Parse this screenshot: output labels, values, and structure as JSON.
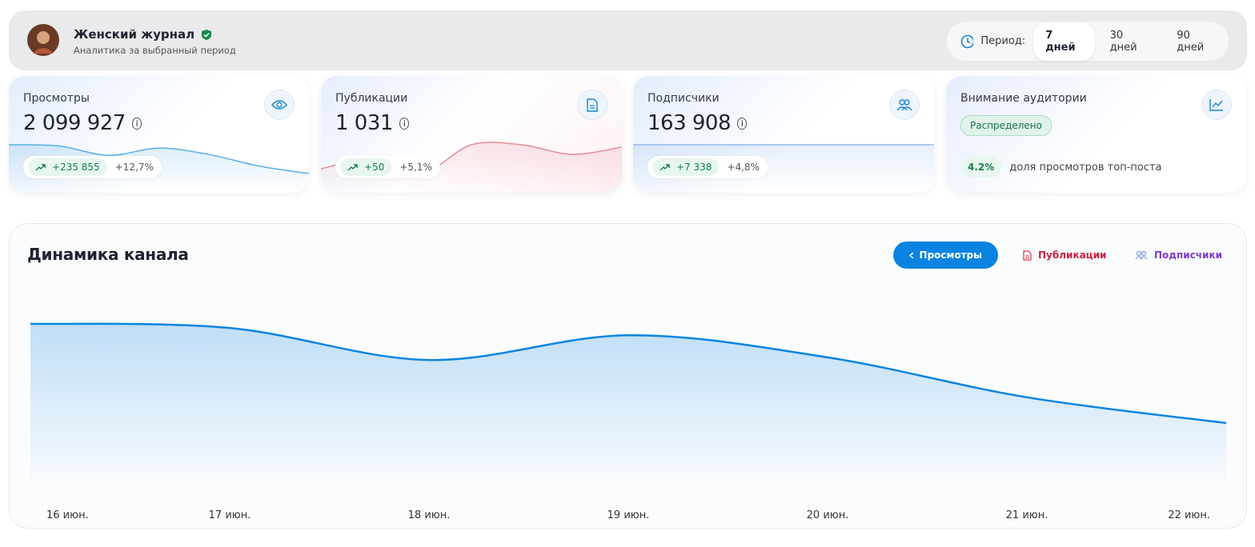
{
  "header": {
    "title": "Женский журнал",
    "subtitle": "Аналитика за выбранный период",
    "period_label": "Период:",
    "periods": [
      "7 дней",
      "30 дней",
      "90 дней"
    ]
  },
  "cards": [
    {
      "title": "Просмотры",
      "value": "2 099 927",
      "change": "+235 855",
      "change_pct": "+12,7%",
      "color": "#5aaee6",
      "sparkline": [
        297,
        289,
        228,
        275,
        233,
        157,
        108
      ]
    },
    {
      "title": "Публикации",
      "value": "1 031",
      "change": "+50",
      "change_pct": "+5,1%",
      "color": "#e58a95",
      "sparkline": [
        150,
        158,
        146,
        170,
        170,
        162,
        168
      ]
    },
    {
      "title": "Подписчики",
      "value": "163 908",
      "change": "+7 338",
      "change_pct": "+4,8%",
      "color": "#8fb8ea",
      "sparkline": [
        164,
        164,
        164,
        164,
        164,
        164,
        164
      ]
    },
    {
      "title": "Внимание аудитории",
      "badge": "Распределено",
      "share": "4.2%",
      "share_text": "доля просмотров топ-поста"
    }
  ],
  "chart_data": {
    "type": "area",
    "title": "Динамика канала",
    "tabs": [
      "Просмотры",
      "Публикации",
      "Подписчики"
    ],
    "categories": [
      "16 июн.",
      "17 июн.",
      "18 июн.",
      "19 июн.",
      "20 июн.",
      "21 июн.",
      "22 июн."
    ],
    "series": [
      {
        "name": "Просмотры",
        "color": "#0a84e0",
        "values": [
          297000,
          289000,
          228000,
          275000,
          233000,
          157000,
          108000
        ]
      }
    ],
    "ylim": [
      0,
      350000
    ]
  }
}
